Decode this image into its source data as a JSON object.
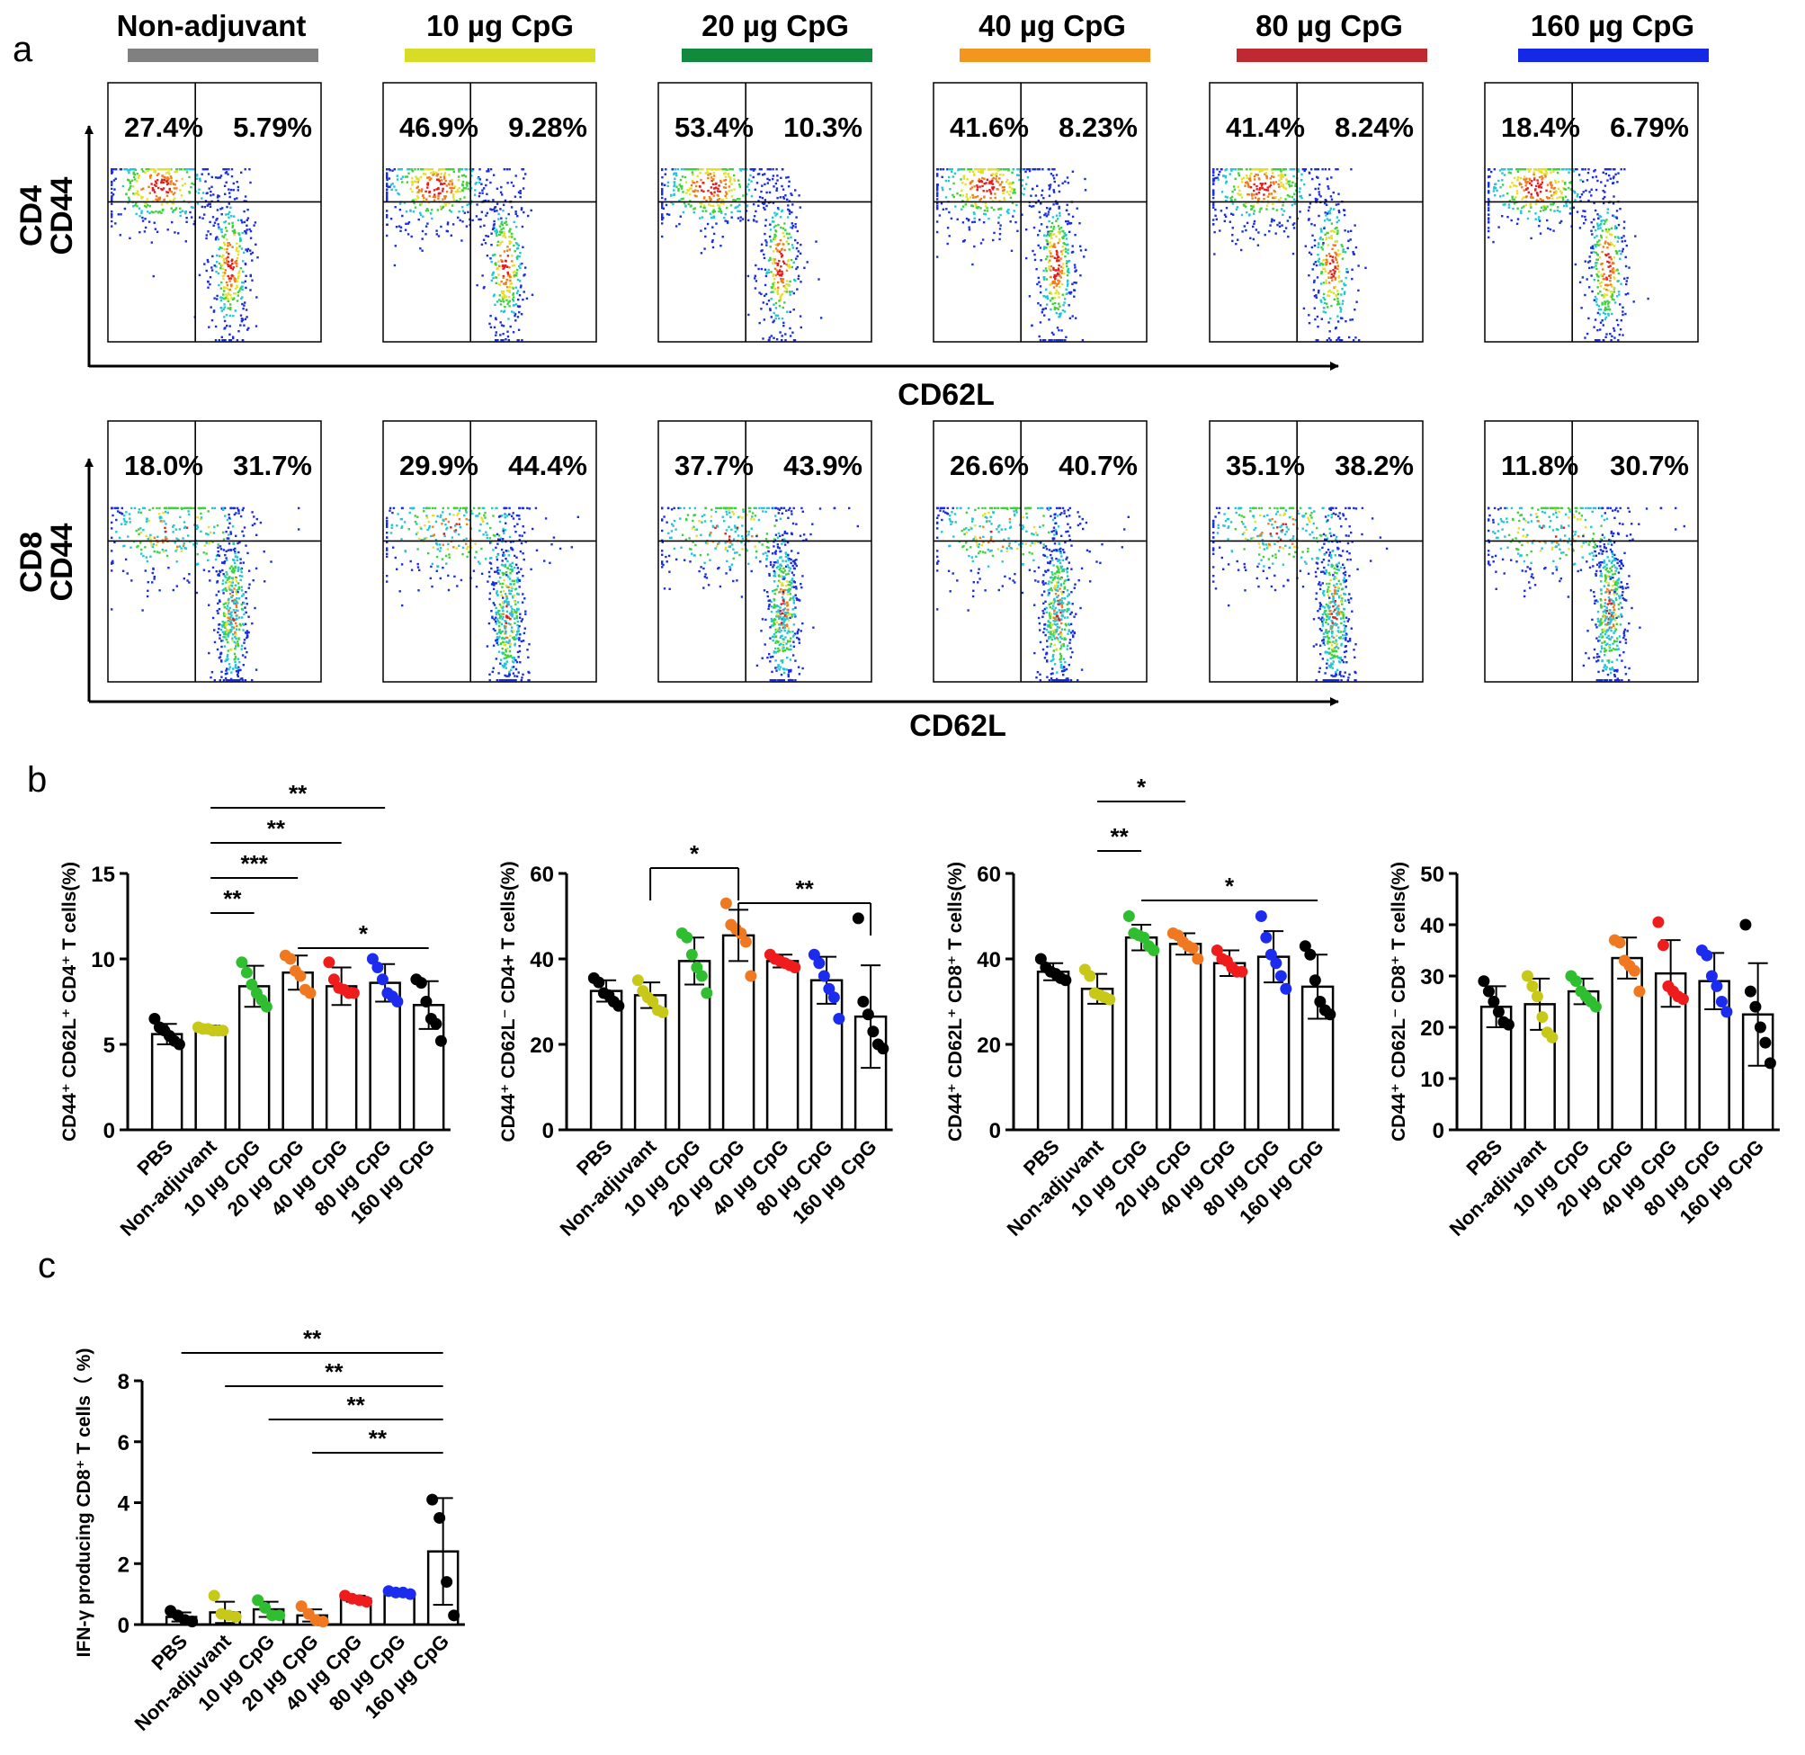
{
  "panel_labels": {
    "a": "a",
    "b": "b",
    "c": "c"
  },
  "groups": [
    {
      "name": "Non-adjuvant",
      "color": "#808080"
    },
    {
      "name": "10 µg CpG",
      "color": "#d8dc26"
    },
    {
      "name": "20 µg CpG",
      "color": "#128a3e"
    },
    {
      "name": "40 µg CpG",
      "color": "#f2961f"
    },
    {
      "name": "80 µg CpG",
      "color": "#bf2a32"
    },
    {
      "name": "160 µg CpG",
      "color": "#1428e6"
    }
  ],
  "flow": {
    "x_axis_label": "CD62L",
    "rows": [
      {
        "y_label_top": "CD4",
        "y_label_bottom": "CD44",
        "quadrants": [
          [
            "27.4%",
            "5.79%"
          ],
          [
            "46.9%",
            "9.28%"
          ],
          [
            "53.4%",
            "10.3%"
          ],
          [
            "41.6%",
            "8.23%"
          ],
          [
            "41.4%",
            "8.24%"
          ],
          [
            "18.4%",
            "6.79%"
          ]
        ]
      },
      {
        "y_label_top": "CD8",
        "y_label_bottom": "CD44",
        "quadrants": [
          [
            "18.0%",
            "31.7%"
          ],
          [
            "29.9%",
            "44.4%"
          ],
          [
            "37.7%",
            "43.9%"
          ],
          [
            "26.6%",
            "40.7%"
          ],
          [
            "35.1%",
            "38.2%"
          ],
          [
            "11.8%",
            "30.7%"
          ]
        ]
      }
    ]
  },
  "chart_data": [
    {
      "type": "bar",
      "panel": "b",
      "ylabel": "CD44⁺ CD62L⁺ CD4⁺ T cells(%)",
      "categories": [
        "PBS",
        "Non-adjuvant",
        "10 µg CpG",
        "20 µg CpG",
        "40 µg CpG",
        "80 µg CpG",
        "160 µg CpG"
      ],
      "ylim": [
        0,
        15
      ],
      "yticks": [
        0,
        5,
        10,
        15
      ],
      "values": [
        5.6,
        5.9,
        8.4,
        9.2,
        8.4,
        8.6,
        7.3
      ],
      "sd": [
        0.6,
        0.2,
        1.2,
        1.0,
        1.1,
        1.1,
        1.4
      ],
      "points": [
        [
          6.5,
          6.0,
          5.8,
          5.5,
          5.2,
          5.0
        ],
        [
          6.0,
          5.9,
          5.9,
          5.8,
          5.8,
          5.8
        ],
        [
          9.8,
          9.2,
          8.5,
          8.0,
          7.6,
          7.2
        ],
        [
          10.2,
          10.0,
          9.3,
          9.0,
          8.2,
          8.0
        ],
        [
          9.8,
          8.8,
          8.3,
          8.2,
          8.0,
          8.0
        ],
        [
          10.0,
          9.5,
          8.8,
          8.0,
          7.8,
          7.5
        ],
        [
          8.8,
          8.6,
          7.5,
          6.5,
          6.2,
          5.2
        ]
      ],
      "point_colors": [
        "#000000",
        "#c8c818",
        "#2fbe2f",
        "#f07820",
        "#ee1c1c",
        "#1c2cee",
        "#000000"
      ],
      "significance": [
        {
          "from": 1,
          "to": 5,
          "label": "**"
        },
        {
          "from": 1,
          "to": 4,
          "label": "**"
        },
        {
          "from": 1,
          "to": 3,
          "label": "***"
        },
        {
          "from": 1,
          "to": 2,
          "label": "**"
        },
        {
          "from": 3,
          "to": 6,
          "label": "*"
        }
      ]
    },
    {
      "type": "bar",
      "panel": "b",
      "ylabel": "CD44⁺ CD62L⁻ CD4+ T cells(%)",
      "categories": [
        "PBS",
        "Non-adjuvant",
        "10 µg CpG",
        "20 µg CpG",
        "40 µg CpG",
        "80 µg CpG",
        "160 µg CpG"
      ],
      "ylim": [
        0,
        60
      ],
      "yticks": [
        0,
        20,
        40,
        60
      ],
      "values": [
        32.5,
        31.5,
        39.5,
        45.5,
        39.5,
        35.0,
        26.5
      ],
      "sd": [
        2.5,
        3.0,
        5.5,
        6.0,
        1.5,
        5.5,
        12.0
      ],
      "points": [
        [
          35.5,
          34.5,
          32.0,
          31.5,
          30.0,
          29.0
        ],
        [
          35.0,
          32.5,
          31.0,
          30.0,
          28.0,
          27.5
        ],
        [
          46.0,
          45.0,
          41.0,
          38.0,
          36.0,
          32.0
        ],
        [
          53.0,
          48.0,
          47.0,
          46.0,
          44.0,
          36.0
        ],
        [
          41.0,
          40.0,
          39.5,
          39.0,
          38.5,
          38.0
        ],
        [
          41.0,
          39.0,
          36.0,
          33.0,
          31.0,
          26.0
        ],
        [
          49.5,
          30.0,
          27.0,
          23.0,
          20.0,
          19.0
        ]
      ],
      "point_colors": [
        "#000000",
        "#c8c818",
        "#2fbe2f",
        "#f07820",
        "#ee1c1c",
        "#1c2cee",
        "#000000"
      ],
      "significance": [
        {
          "from": 1,
          "to": 3,
          "label": "*",
          "drop": true
        },
        {
          "from": 3,
          "to": 6,
          "label": "**",
          "drop": true
        }
      ]
    },
    {
      "type": "bar",
      "panel": "b",
      "ylabel": "CD44⁺ CD62L⁺ CD8⁺ T cells(%)",
      "categories": [
        "PBS",
        "Non-adjuvant",
        "10 µg CpG",
        "20 µg CpG",
        "40 µg CpG",
        "80 µg CpG",
        "160 µg CpG"
      ],
      "ylim": [
        0,
        60
      ],
      "yticks": [
        0,
        20,
        40,
        60
      ],
      "values": [
        37.0,
        33.0,
        45.0,
        43.5,
        39.0,
        40.5,
        33.5
      ],
      "sd": [
        2.0,
        3.5,
        3.0,
        2.5,
        3.0,
        6.0,
        7.5
      ],
      "points": [
        [
          40.0,
          38.0,
          37.0,
          36.5,
          35.5,
          35.0
        ],
        [
          37.5,
          36.0,
          32.0,
          31.5,
          31.0,
          30.5
        ],
        [
          50.0,
          46.0,
          45.5,
          45.0,
          43.0,
          42.0
        ],
        [
          46.0,
          45.5,
          44.0,
          43.0,
          42.5,
          40.0
        ],
        [
          42.0,
          40.0,
          39.5,
          38.0,
          37.0,
          37.0
        ],
        [
          50.0,
          45.0,
          41.0,
          39.0,
          36.0,
          33.0
        ],
        [
          43.0,
          41.0,
          35.0,
          30.0,
          28.0,
          27.0
        ]
      ],
      "point_colors": [
        "#000000",
        "#c8c818",
        "#2fbe2f",
        "#f07820",
        "#ee1c1c",
        "#1c2cee",
        "#000000"
      ],
      "significance": [
        {
          "from": 1,
          "to": 3,
          "label": "*"
        },
        {
          "from": 1,
          "to": 2,
          "label": "**"
        },
        {
          "from": 2,
          "to": 6,
          "label": "*"
        }
      ]
    },
    {
      "type": "bar",
      "panel": "b",
      "ylabel": "CD44⁺ CD62L⁻ CD8⁺ T cells(%)",
      "categories": [
        "PBS",
        "Non-adjuvant",
        "10 µg CpG",
        "20 µg CpG",
        "40 µg CpG",
        "80 µg CpG",
        "160 µg CpG"
      ],
      "ylim": [
        0,
        50
      ],
      "yticks": [
        0,
        10,
        20,
        30,
        40,
        50
      ],
      "values": [
        24.0,
        24.5,
        27.0,
        33.5,
        30.5,
        29.0,
        22.5
      ],
      "sd": [
        4.0,
        5.0,
        2.5,
        4.0,
        6.5,
        5.5,
        10.0
      ],
      "points": [
        [
          29.0,
          27.0,
          25.0,
          23.0,
          21.0,
          20.5
        ],
        [
          30.0,
          28.0,
          26.0,
          22.0,
          19.0,
          18.0
        ],
        [
          30.0,
          29.0,
          27.0,
          26.0,
          25.0,
          24.0
        ],
        [
          37.0,
          36.5,
          33.0,
          32.0,
          31.0,
          27.0
        ],
        [
          40.5,
          36.0,
          28.0,
          27.0,
          26.0,
          25.5
        ],
        [
          35.0,
          34.0,
          30.0,
          28.0,
          25.0,
          23.0
        ],
        [
          40.0,
          27.0,
          24.0,
          20.0,
          17.0,
          13.0
        ]
      ],
      "point_colors": [
        "#000000",
        "#c8c818",
        "#2fbe2f",
        "#f07820",
        "#ee1c1c",
        "#1c2cee",
        "#000000"
      ],
      "significance": []
    },
    {
      "type": "bar",
      "panel": "c",
      "ylabel": "IFN-γ producing CD8⁺ T cells（ %)",
      "categories": [
        "PBS",
        "Non-adjuvant",
        "10 µg CpG",
        "20 µg CpG",
        "40 µg CpG",
        "80 µg CpG",
        "160 µg CpG"
      ],
      "ylim": [
        0,
        8
      ],
      "yticks": [
        0,
        2,
        4,
        6,
        8
      ],
      "values": [
        0.25,
        0.4,
        0.5,
        0.3,
        0.85,
        1.05,
        2.4
      ],
      "sd": [
        0.15,
        0.35,
        0.25,
        0.2,
        0.1,
        0.05,
        1.75
      ],
      "points": [
        [
          0.45,
          0.3,
          0.15,
          0.1
        ],
        [
          0.95,
          0.35,
          0.3,
          0.25
        ],
        [
          0.8,
          0.55,
          0.3,
          0.3
        ],
        [
          0.6,
          0.35,
          0.15,
          0.1
        ],
        [
          0.95,
          0.85,
          0.8,
          0.75
        ],
        [
          1.1,
          1.05,
          1.05,
          1.0
        ],
        [
          4.1,
          3.5,
          1.4,
          0.3
        ]
      ],
      "point_colors": [
        "#000000",
        "#c8c818",
        "#2fbe2f",
        "#f07820",
        "#ee1c1c",
        "#1c2cee",
        "#000000"
      ],
      "significance": [
        {
          "from": 0,
          "to": 6,
          "label": "**"
        },
        {
          "from": 1,
          "to": 6,
          "label": "**"
        },
        {
          "from": 2,
          "to": 6,
          "label": "**"
        },
        {
          "from": 3,
          "to": 6,
          "label": "**"
        }
      ]
    }
  ]
}
